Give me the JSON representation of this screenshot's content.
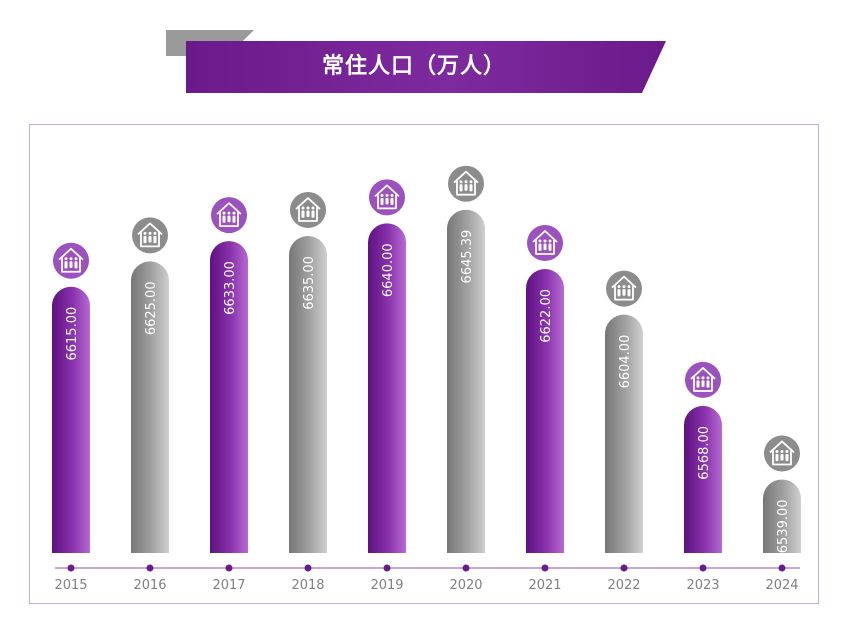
{
  "chart_data": {
    "type": "bar",
    "title": "常住人口（万人）",
    "categories": [
      "2015",
      "2016",
      "2017",
      "2018",
      "2019",
      "2020",
      "2021",
      "2022",
      "2023",
      "2024"
    ],
    "values": [
      6615.0,
      6625.0,
      6633.0,
      6635.0,
      6640.0,
      6645.39,
      6622.0,
      6604.0,
      6568.0,
      6539.0
    ],
    "value_labels": [
      "6615.00",
      "6625.00",
      "6633.00",
      "6635.00",
      "6640.00",
      "6645.39",
      "6622.00",
      "6604.00",
      "6568.00",
      "6539.00"
    ],
    "bar_colors": [
      "purple",
      "gray",
      "purple",
      "gray",
      "purple",
      "gray",
      "purple",
      "gray",
      "purple",
      "gray"
    ],
    "icon": "house-family-icon",
    "ylim": [
      6510,
      6650
    ],
    "grid": false,
    "legend": "none"
  },
  "colors": {
    "purple_dark": "#5e1180",
    "purple_light": "#a44fc4",
    "gray_dark": "#7a7a7a",
    "gray_light": "#c8c8c8",
    "axis": "#b48ec6",
    "tick_text": "#808080"
  }
}
